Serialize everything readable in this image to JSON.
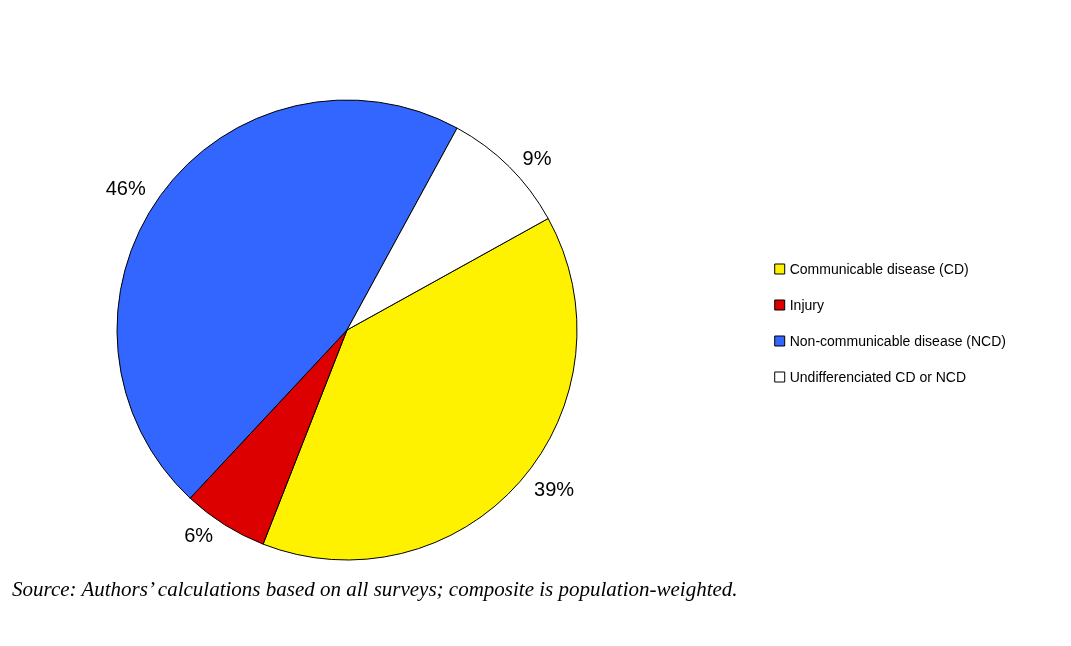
{
  "chart_data": {
    "type": "pie",
    "categories": [
      "Communicable disease (CD)",
      "Injury",
      "Non-communicable disease (NCD)",
      "Undifferenciated CD or NCD"
    ],
    "values": [
      39,
      6,
      46,
      9
    ],
    "colors": [
      "#fff200",
      "#dd0000",
      "#3366ff",
      "#ffffff"
    ],
    "value_labels": [
      "39%",
      "6%",
      "46%",
      "9%"
    ],
    "legend": "right",
    "annotations": [
      "Source: Authors’ calculations based on all surveys; composite is population-weighted."
    ]
  }
}
